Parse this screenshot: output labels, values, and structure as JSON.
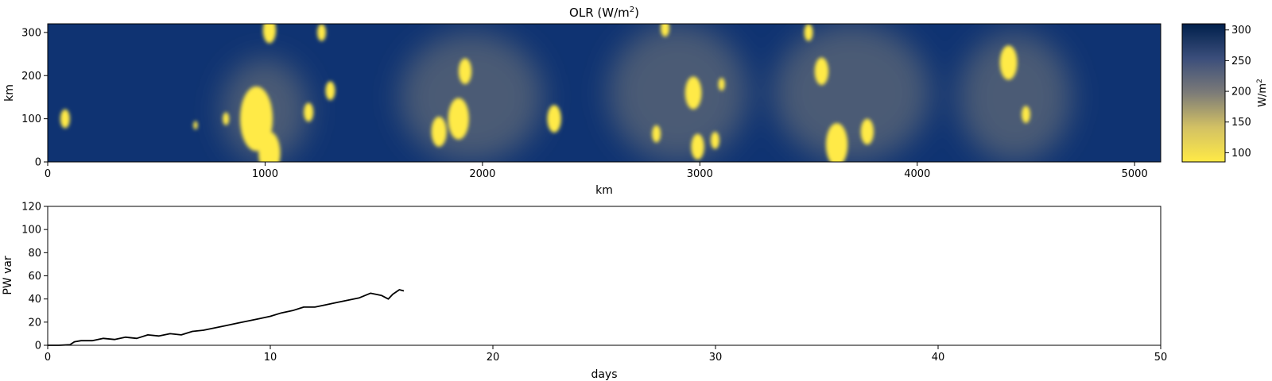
{
  "chart_data": [
    {
      "type": "heatmap",
      "title": "OLR (W/m",
      "title_sup": "2",
      "title_close": ")",
      "xlabel": "km",
      "ylabel": "km",
      "xlim": [
        0,
        5120
      ],
      "ylim": [
        0,
        320
      ],
      "xticks": [
        0,
        1000,
        2000,
        3000,
        4000,
        5000
      ],
      "yticks": [
        0,
        100,
        200,
        300
      ],
      "colormap": "cividis_r",
      "colors": {
        "high": "#00204c",
        "mid": "#7c7b78",
        "low": "#ffea46",
        "base": "#0f3372"
      },
      "colorbar": {
        "label": "W/m",
        "label_sup": "2",
        "range": [
          85,
          310
        ],
        "ticks": [
          100,
          150,
          200,
          250,
          300
        ]
      },
      "cold_cloud_cores": [
        {
          "x": 80,
          "y": 100,
          "r": 22
        },
        {
          "x": 960,
          "y": 100,
          "r": 75
        },
        {
          "x": 1020,
          "y": 20,
          "r": 50
        },
        {
          "x": 1020,
          "y": 305,
          "r": 30
        },
        {
          "x": 1260,
          "y": 300,
          "r": 20
        },
        {
          "x": 1300,
          "y": 165,
          "r": 22
        },
        {
          "x": 1200,
          "y": 115,
          "r": 22
        },
        {
          "x": 820,
          "y": 100,
          "r": 15
        },
        {
          "x": 680,
          "y": 85,
          "r": 10
        },
        {
          "x": 1890,
          "y": 100,
          "r": 48
        },
        {
          "x": 1800,
          "y": 70,
          "r": 35
        },
        {
          "x": 1920,
          "y": 210,
          "r": 30
        },
        {
          "x": 2330,
          "y": 100,
          "r": 32
        },
        {
          "x": 2800,
          "y": 65,
          "r": 20
        },
        {
          "x": 2970,
          "y": 160,
          "r": 38
        },
        {
          "x": 2990,
          "y": 35,
          "r": 30
        },
        {
          "x": 3070,
          "y": 50,
          "r": 20
        },
        {
          "x": 3100,
          "y": 180,
          "r": 15
        },
        {
          "x": 2840,
          "y": 310,
          "r": 20
        },
        {
          "x": 3630,
          "y": 40,
          "r": 50
        },
        {
          "x": 3770,
          "y": 70,
          "r": 30
        },
        {
          "x": 3560,
          "y": 210,
          "r": 32
        },
        {
          "x": 3500,
          "y": 300,
          "r": 20
        },
        {
          "x": 4420,
          "y": 230,
          "r": 40
        },
        {
          "x": 4500,
          "y": 110,
          "r": 20
        }
      ],
      "cloudy_regions": [
        {
          "x": 1950,
          "y": 150,
          "rx": 330,
          "ry": 150
        },
        {
          "x": 2900,
          "y": 160,
          "rx": 320,
          "ry": 160
        },
        {
          "x": 3700,
          "y": 160,
          "rx": 360,
          "ry": 160
        },
        {
          "x": 4450,
          "y": 150,
          "rx": 260,
          "ry": 150
        },
        {
          "x": 1000,
          "y": 120,
          "rx": 200,
          "ry": 120
        }
      ]
    },
    {
      "type": "line",
      "title": "",
      "xlabel": "days",
      "ylabel": "PW var",
      "xlim": [
        0,
        50
      ],
      "ylim": [
        0,
        120
      ],
      "xticks": [
        0,
        10,
        20,
        30,
        40,
        50
      ],
      "yticks": [
        0,
        20,
        40,
        60,
        80,
        100,
        120
      ],
      "line_color": "#000000",
      "series": [
        {
          "x": [
            0,
            0.5,
            1.0,
            1.2,
            1.5,
            2.0,
            2.5,
            3.0,
            3.5,
            4.0,
            4.5,
            5.0,
            5.5,
            6.0,
            6.5,
            7.0,
            7.5,
            8.0,
            8.5,
            9.0,
            9.5,
            10.0,
            10.5,
            11.0,
            11.5,
            12.0,
            12.5,
            13.0,
            13.5,
            14.0,
            14.5,
            15.0,
            15.3,
            15.5,
            15.8,
            16.0
          ],
          "y": [
            0,
            0,
            0.5,
            3,
            4,
            4,
            6,
            5,
            7,
            6,
            9,
            8,
            10,
            9,
            12,
            13,
            15,
            17,
            19,
            21,
            23,
            25,
            28,
            30,
            33,
            33,
            35,
            37,
            39,
            41,
            45,
            43,
            40,
            44,
            48,
            47
          ]
        }
      ]
    }
  ]
}
